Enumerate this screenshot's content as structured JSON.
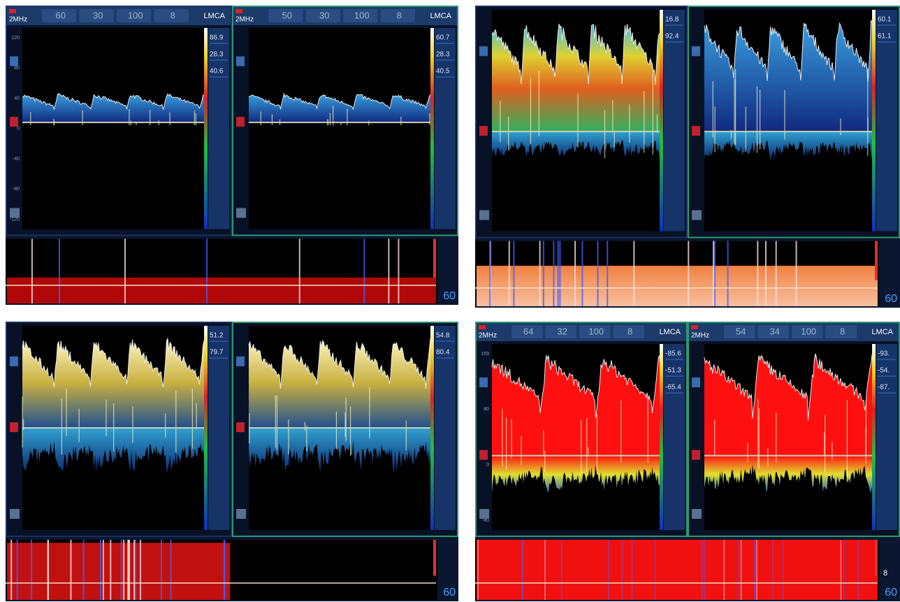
{
  "quadrants": [
    {
      "panes": [
        {
          "freq": "2MHz",
          "depth": "60",
          "gain": "30",
          "power": "100",
          "sample": "8",
          "vessel": "LMCA",
          "readings": [
            "86.9",
            "28.3",
            "40.6"
          ],
          "axis_labels": [
            "120",
            "80",
            "40",
            "0",
            "-40",
            "-80",
            "-120"
          ]
        },
        {
          "freq": "2MHz",
          "depth": "50",
          "gain": "30",
          "power": "100",
          "sample": "8",
          "vessel": "LMCA",
          "readings": [
            "60.7",
            "28.3",
            "40.5"
          ]
        }
      ],
      "scale_label": "60"
    },
    {
      "panes": [
        {
          "readings": [
            "16.8",
            "92.4"
          ]
        },
        {
          "readings": [
            "60.1",
            "61.1"
          ]
        }
      ],
      "scale_label": "60"
    },
    {
      "panes": [
        {
          "readings": [
            "51.2",
            "79.7"
          ]
        },
        {
          "readings": [
            "54.8",
            "80.4"
          ]
        }
      ],
      "scale_label": "60"
    },
    {
      "panes": [
        {
          "freq": "2MHz",
          "depth": "64",
          "gain": "32",
          "power": "100",
          "sample": "8",
          "vessel": "LMCA",
          "readings": [
            "-85.6",
            "-51.3",
            "-65.4"
          ],
          "axis_labels": [
            "159",
            "80",
            "0",
            "-80"
          ]
        },
        {
          "freq": "2MHz",
          "depth": "54",
          "gain": "34",
          "power": "100",
          "sample": "8",
          "vessel": "LMCA",
          "readings": [
            "-93.",
            "-54.",
            "-87."
          ]
        }
      ],
      "scale_label": "60",
      "strip_label": "8"
    }
  ]
}
